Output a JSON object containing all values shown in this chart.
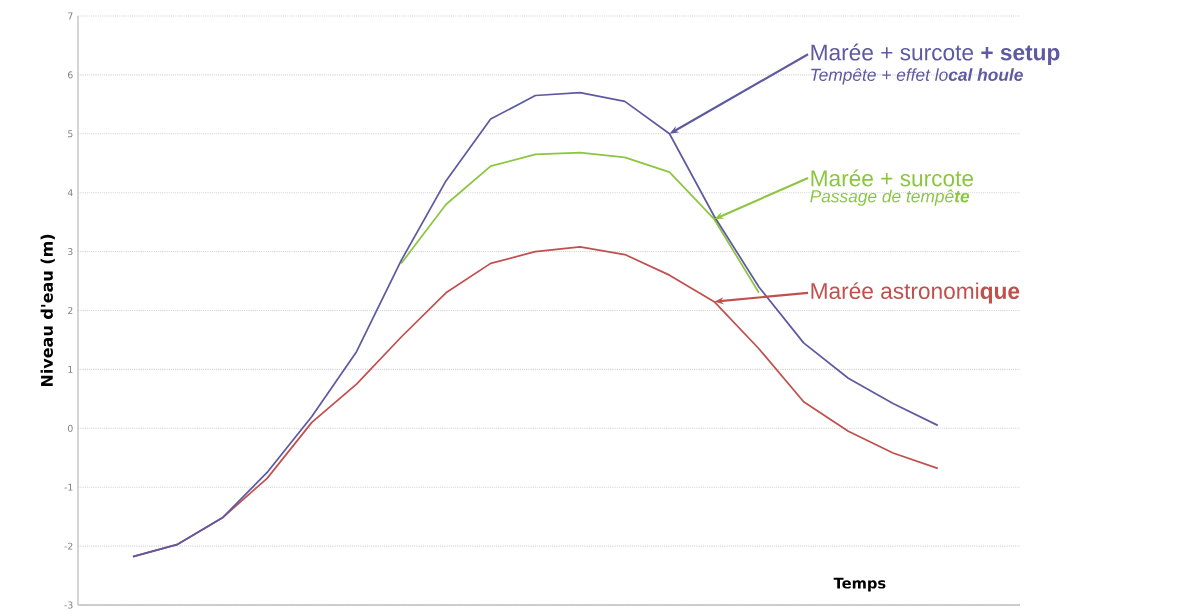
{
  "chart_data": {
    "type": "line",
    "ylabel": "Niveau d'eau (m)",
    "xlabel": "Temps",
    "categories": [
      null,
      null,
      null,
      null,
      null,
      null,
      null,
      null,
      null,
      null,
      null,
      null,
      null,
      null,
      null,
      null,
      null,
      null,
      null
    ],
    "series": [
      {
        "name": "Marée astronomi**que**",
        "color": "#c0504d",
        "values": [
          -2.18,
          -1.97,
          -1.52,
          -0.85,
          0.1,
          0.75,
          1.55,
          2.3,
          2.8,
          3.0,
          3.08,
          2.95,
          2.6,
          2.15,
          1.35,
          0.45,
          -0.05,
          -0.42,
          -0.68
        ]
      },
      {
        "name": "Marée + surcote",
        "color": "#8cc63f",
        "values": [
          null,
          null,
          null,
          null,
          null,
          null,
          2.8,
          3.8,
          4.45,
          4.65,
          4.68,
          4.6,
          4.35,
          3.55,
          2.3,
          null,
          null,
          null,
          null
        ]
      },
      {
        "name": "Marée + surcote **+ setup**",
        "color": "#5e5aa0",
        "values": [
          -2.18,
          -1.97,
          -1.52,
          -0.75,
          0.2,
          1.3,
          2.85,
          4.2,
          5.25,
          5.65,
          5.7,
          5.55,
          5.0,
          3.6,
          2.4,
          1.45,
          0.85,
          0.42,
          0.05
        ]
      }
    ],
    "annotations": [
      "Passage de tempê**te**",
      "Tempête + effet lo**cal houle**"
    ],
    "ylim": [
      -3,
      7
    ],
    "yticks": [
      -3,
      -2,
      -1,
      0,
      1,
      2,
      3,
      4,
      5,
      6,
      7
    ],
    "grid": "y"
  }
}
